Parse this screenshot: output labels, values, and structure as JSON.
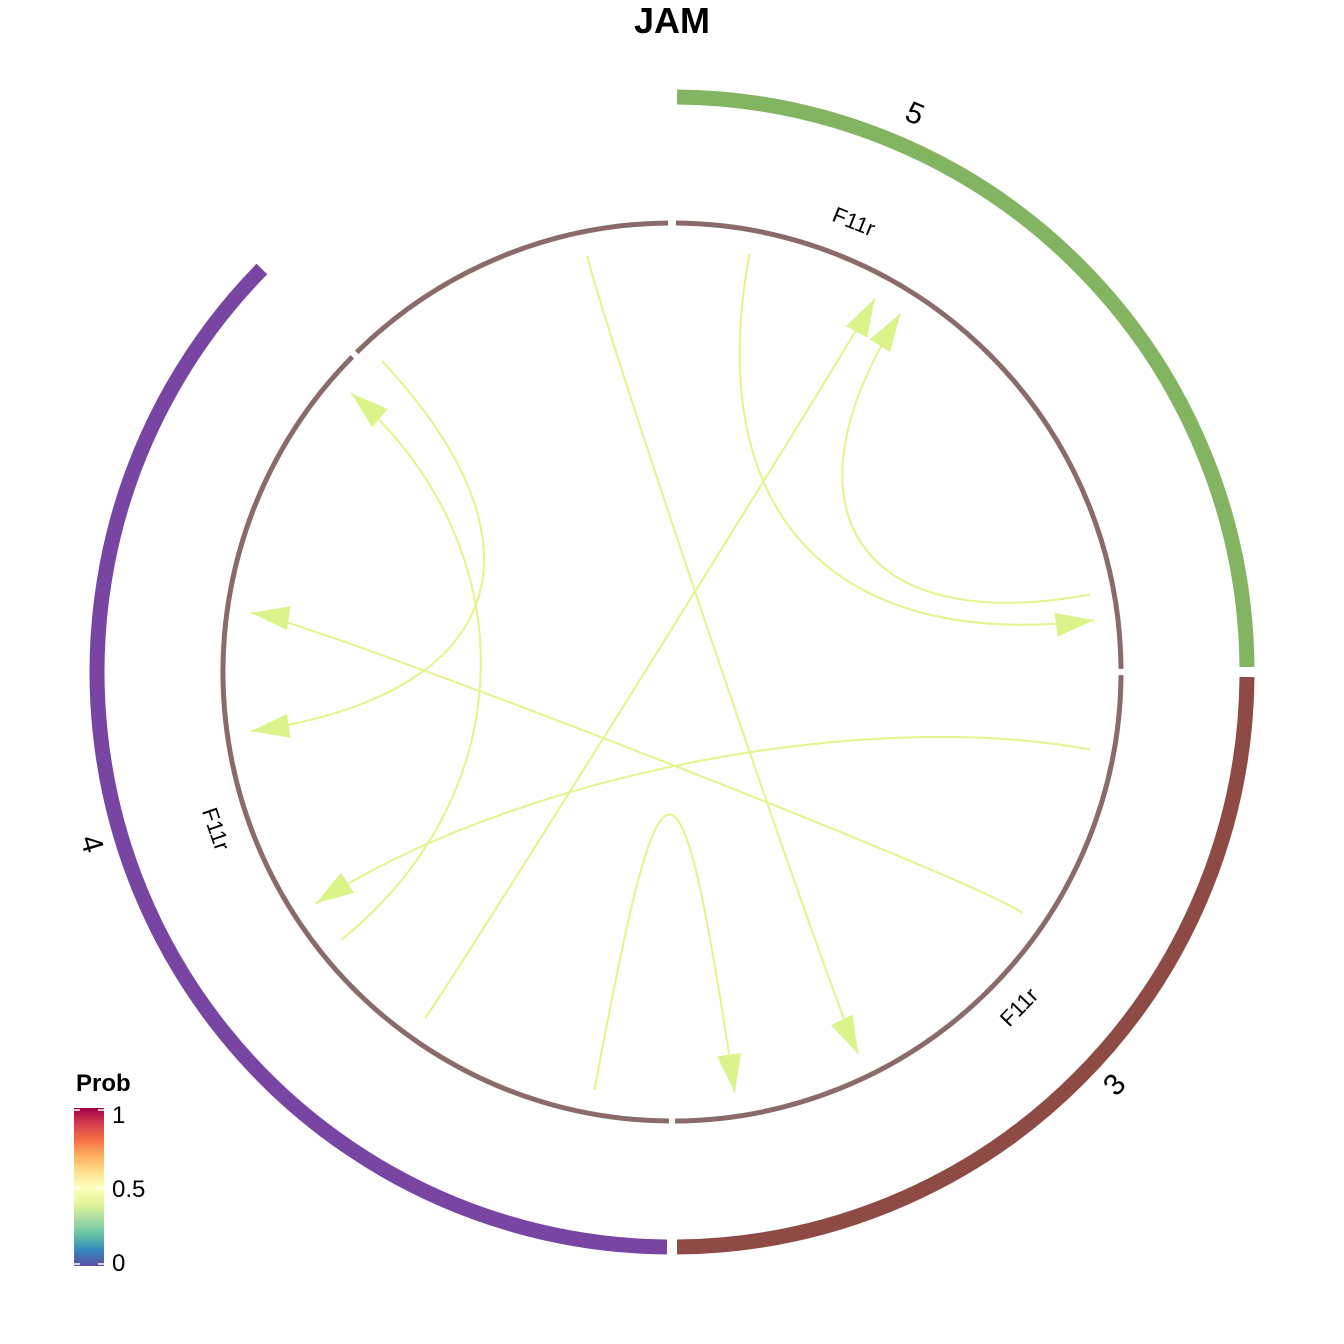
{
  "title": "JAM",
  "groups": [
    {
      "name": "5",
      "color": "#82B461"
    },
    {
      "name": "3",
      "color": "#8E4B45"
    },
    {
      "name": "4",
      "color": "#7845A3"
    }
  ],
  "gene_label": "F11r",
  "inner_ring_color": "#8B6A6A",
  "link_color": "#E2F58A",
  "arrow_color": "#DAF48A",
  "legend": {
    "title": "Prob",
    "ticks": [
      "1",
      "0.5",
      "0"
    ],
    "colors": [
      "#5E4FA2",
      "#3288BD",
      "#66C2A5",
      "#ABDDA4",
      "#E6F598",
      "#FFFFBF",
      "#FEE08B",
      "#FDAE61",
      "#F46D43",
      "#D53E4F",
      "#9E0142"
    ]
  }
}
